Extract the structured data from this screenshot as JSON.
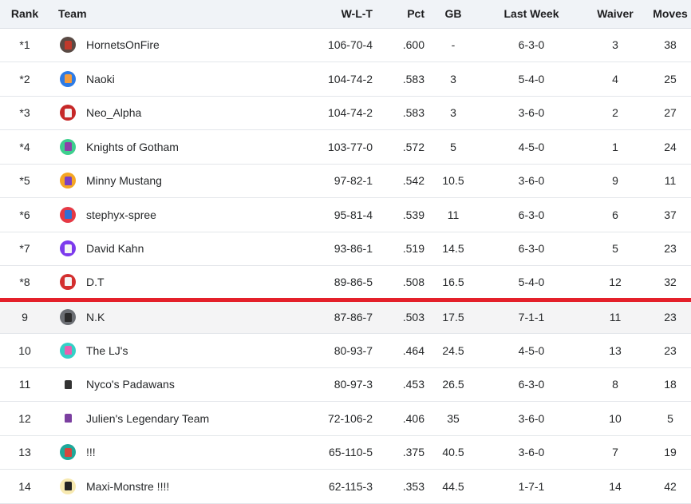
{
  "headers": {
    "rank": "Rank",
    "team": "Team",
    "wlt": "W-L-T",
    "pct": "Pct",
    "gb": "GB",
    "last_week": "Last Week",
    "waiver": "Waiver",
    "moves": "Moves"
  },
  "playoff_cutoff_after_rank": 8,
  "rows": [
    {
      "rank": "*1",
      "team": "HornetsOnFire",
      "wlt": "106-70-4",
      "pct": ".600",
      "gb": "-",
      "last_week": "6-3-0",
      "waiver": "3",
      "moves": "38",
      "avatar_bg": "#5a4a44",
      "jersey": "#c0392b"
    },
    {
      "rank": "*2",
      "team": "Naoki",
      "wlt": "104-74-2",
      "pct": ".583",
      "gb": "3",
      "last_week": "5-4-0",
      "waiver": "4",
      "moves": "25",
      "avatar_bg": "#2d7be5",
      "jersey": "#f39c3d"
    },
    {
      "rank": "*3",
      "team": "Neo_Alpha",
      "wlt": "104-74-2",
      "pct": ".583",
      "gb": "3",
      "last_week": "3-6-0",
      "waiver": "2",
      "moves": "27",
      "avatar_bg": "#c62828",
      "jersey": "#f5f5f5"
    },
    {
      "rank": "*4",
      "team": "Knights of Gotham",
      "wlt": "103-77-0",
      "pct": ".572",
      "gb": "5",
      "last_week": "4-5-0",
      "waiver": "1",
      "moves": "24",
      "avatar_bg": "#3ecf8e",
      "jersey": "#8e3fa8"
    },
    {
      "rank": "*5",
      "team": "Minny Mustang",
      "wlt": "97-82-1",
      "pct": ".542",
      "gb": "10.5",
      "last_week": "3-6-0",
      "waiver": "9",
      "moves": "11",
      "avatar_bg": "#f5a623",
      "jersey": "#7b3fc4"
    },
    {
      "rank": "*6",
      "team": "stephyx-spree",
      "wlt": "95-81-4",
      "pct": ".539",
      "gb": "11",
      "last_week": "6-3-0",
      "waiver": "6",
      "moves": "37",
      "avatar_bg": "#e53945",
      "jersey": "#2f6fd6"
    },
    {
      "rank": "*7",
      "team": "David Kahn",
      "wlt": "93-86-1",
      "pct": ".519",
      "gb": "14.5",
      "last_week": "6-3-0",
      "waiver": "5",
      "moves": "23",
      "avatar_bg": "#7c3aed",
      "jersey": "#f5f5f5"
    },
    {
      "rank": "*8",
      "team": "D.T",
      "wlt": "89-86-5",
      "pct": ".508",
      "gb": "16.5",
      "last_week": "5-4-0",
      "waiver": "12",
      "moves": "32",
      "avatar_bg": "#d32f2f",
      "jersey": "#f5f5f5"
    },
    {
      "rank": "9",
      "team": "N.K",
      "wlt": "87-86-7",
      "pct": ".503",
      "gb": "17.5",
      "last_week": "7-1-1",
      "waiver": "11",
      "moves": "23",
      "avatar_bg": "#6b6e73",
      "jersey": "#2b2b2b"
    },
    {
      "rank": "10",
      "team": "The LJ's",
      "wlt": "80-93-7",
      "pct": ".464",
      "gb": "24.5",
      "last_week": "4-5-0",
      "waiver": "13",
      "moves": "23",
      "avatar_bg": "#33d1c6",
      "jersey": "#e85fb0"
    },
    {
      "rank": "11",
      "team": "Nyco's Padawans",
      "wlt": "80-97-3",
      "pct": ".453",
      "gb": "26.5",
      "last_week": "6-3-0",
      "waiver": "8",
      "moves": "18",
      "avatar_bg": "#ffffff",
      "jersey": "#333333"
    },
    {
      "rank": "12",
      "team": "Julien's Legendary Team",
      "wlt": "72-106-2",
      "pct": ".406",
      "gb": "35",
      "last_week": "3-6-0",
      "waiver": "10",
      "moves": "5",
      "avatar_bg": "#ffffff",
      "jersey": "#7b3fa0"
    },
    {
      "rank": "13",
      "team": "!!!",
      "wlt": "65-110-5",
      "pct": ".375",
      "gb": "40.5",
      "last_week": "3-6-0",
      "waiver": "7",
      "moves": "19",
      "avatar_bg": "#1fa89a",
      "jersey": "#d6453d"
    },
    {
      "rank": "14",
      "team": "Maxi-Monstre !!!!",
      "wlt": "62-115-3",
      "pct": ".353",
      "gb": "44.5",
      "last_week": "1-7-1",
      "waiver": "14",
      "moves": "42",
      "avatar_bg": "#f7e9b0",
      "jersey": "#222222"
    }
  ]
}
